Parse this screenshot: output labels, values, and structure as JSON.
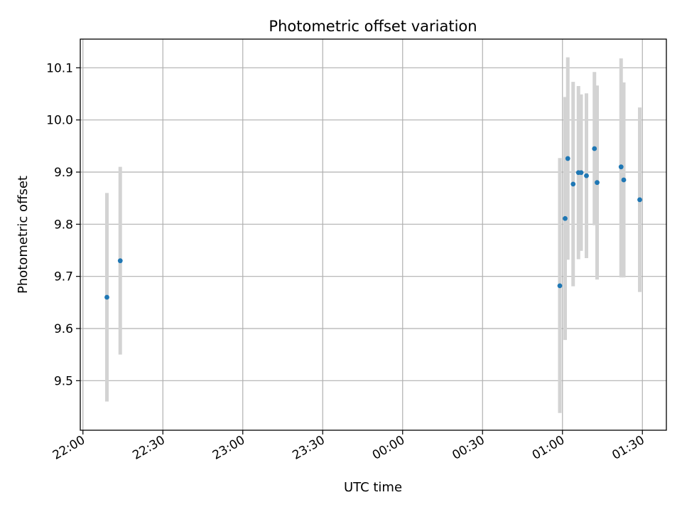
{
  "chart_data": {
    "type": "scatter",
    "title": "Photometric offset variation",
    "xlabel": "UTC time",
    "ylabel": "Photometric offset",
    "x_unit": "UTC time (HH:MM), spanning midnight",
    "xlim": [
      "21:59",
      "01:39"
    ],
    "ylim": [
      9.405,
      10.155
    ],
    "x_ticks": [
      "22:00",
      "22:30",
      "23:00",
      "23:30",
      "00:00",
      "00:30",
      "01:00",
      "01:30"
    ],
    "y_ticks": [
      "9.5",
      "9.6",
      "9.7",
      "9.8",
      "9.9",
      "10.0",
      "10.1"
    ],
    "grid": true,
    "colors": {
      "points": "#1f77b4",
      "error_bars": "#d3d3d3",
      "grid": "#b0b0b0"
    },
    "points": [
      {
        "x": "22:09",
        "y": 9.66,
        "yerr_low": 9.46,
        "yerr_high": 9.86
      },
      {
        "x": "22:14",
        "y": 9.73,
        "yerr_low": 9.55,
        "yerr_high": 9.91
      },
      {
        "x": "00:59",
        "y": 9.682,
        "yerr_low": 9.438,
        "yerr_high": 9.927
      },
      {
        "x": "01:01",
        "y": 9.811,
        "yerr_low": 9.578,
        "yerr_high": 10.044
      },
      {
        "x": "01:02",
        "y": 9.926,
        "yerr_low": 9.732,
        "yerr_high": 10.12
      },
      {
        "x": "01:04",
        "y": 9.877,
        "yerr_low": 9.681,
        "yerr_high": 10.073
      },
      {
        "x": "01:06",
        "y": 9.899,
        "yerr_low": 9.733,
        "yerr_high": 10.065
      },
      {
        "x": "01:07",
        "y": 9.899,
        "yerr_low": 9.749,
        "yerr_high": 10.049
      },
      {
        "x": "01:09",
        "y": 9.893,
        "yerr_low": 9.735,
        "yerr_high": 10.051
      },
      {
        "x": "01:12",
        "y": 9.945,
        "yerr_low": 9.798,
        "yerr_high": 10.092
      },
      {
        "x": "01:13",
        "y": 9.88,
        "yerr_low": 9.694,
        "yerr_high": 10.066
      },
      {
        "x": "01:22",
        "y": 9.91,
        "yerr_low": 9.698,
        "yerr_high": 10.118
      },
      {
        "x": "01:23",
        "y": 9.885,
        "yerr_low": 9.698,
        "yerr_high": 10.072
      },
      {
        "x": "01:29",
        "y": 9.847,
        "yerr_low": 9.67,
        "yerr_high": 10.024
      }
    ]
  }
}
